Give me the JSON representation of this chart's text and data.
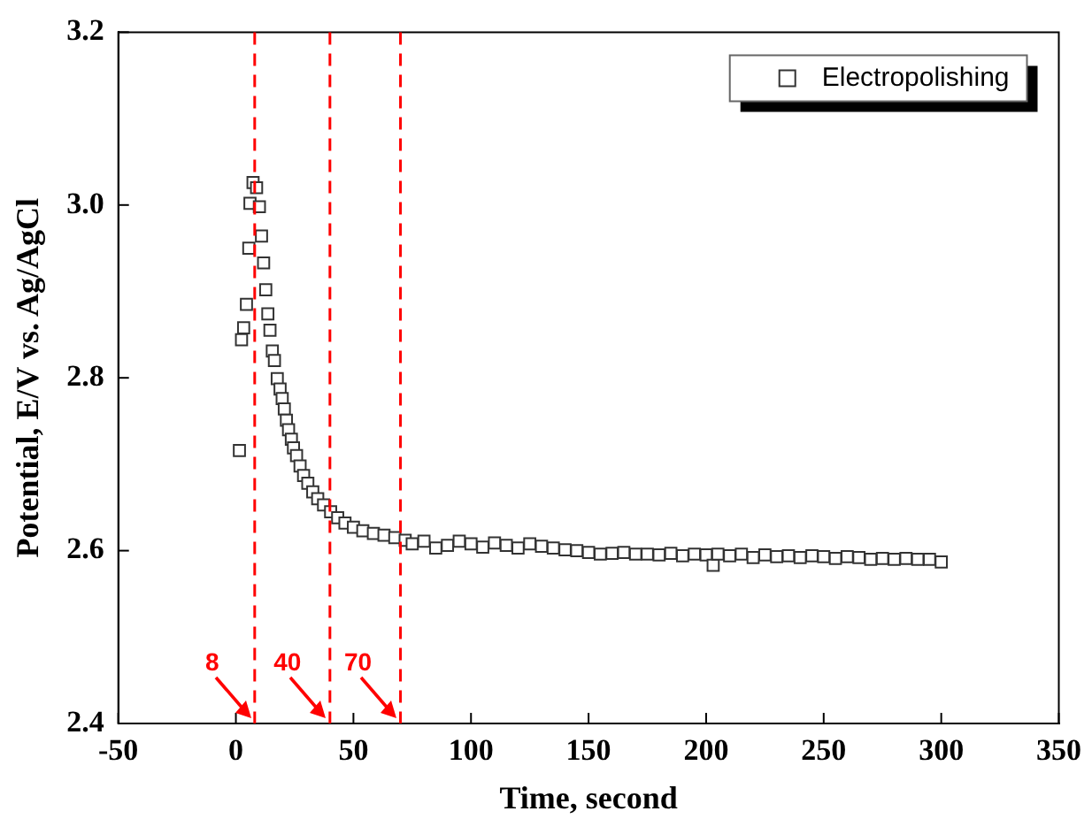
{
  "chart_data": {
    "type": "scatter",
    "xlabel": "Time, second",
    "ylabel": "Potential, E/V vs. Ag/AgCl",
    "xlim": [
      -50,
      350
    ],
    "xticks": [
      -50,
      0,
      50,
      100,
      150,
      200,
      250,
      300,
      350
    ],
    "ylim": [
      2.4,
      3.2
    ],
    "yticks": [
      2.4,
      2.6,
      2.8,
      {
        "value": 3,
        "label": "3.0"
      },
      3.2
    ],
    "grid": false,
    "legend": "top right",
    "marker": "square",
    "ref_lines": [
      {
        "axis": "x",
        "value": 8,
        "label": "8",
        "color": "#ff0000",
        "line_style": "dashed"
      },
      {
        "axis": "x",
        "value": 40,
        "label": "40",
        "color": "#ff0000",
        "line_style": "dashed"
      },
      {
        "axis": "x",
        "value": 70,
        "label": "70",
        "color": "#ff0000",
        "line_style": "dashed"
      }
    ],
    "series": [
      {
        "name": "Electropolishing",
        "color": "#333333",
        "x": [
          1.5,
          2.4,
          3.3,
          4.5,
          5.5,
          6,
          7.3,
          8.8,
          10,
          10.9,
          11.8,
          12.7,
          13.6,
          14.5,
          15.5,
          16.4,
          17.6,
          18.8,
          19.7,
          20.6,
          21.5,
          22.4,
          23.6,
          24.5,
          25.8,
          27.3,
          28.8,
          30.6,
          32.7,
          34.8,
          37.3,
          40.3,
          43.3,
          46.4,
          50,
          54,
          58.5,
          63,
          67.6,
          72,
          75,
          80,
          85,
          90,
          95,
          100,
          105,
          110,
          115,
          120,
          125,
          130,
          135,
          140,
          145,
          150,
          155,
          160,
          165,
          170,
          175,
          180,
          185,
          190,
          195,
          200,
          203,
          205,
          210,
          215,
          220,
          225,
          230,
          235,
          240,
          245,
          250,
          255,
          260,
          265,
          270,
          275,
          280,
          285,
          290,
          295,
          300
        ],
        "values": [
          2.716,
          2.844,
          2.858,
          2.885,
          2.95,
          3.002,
          3.026,
          3.02,
          2.998,
          2.964,
          2.933,
          2.902,
          2.874,
          2.855,
          2.831,
          2.82,
          2.799,
          2.787,
          2.776,
          2.764,
          2.751,
          2.74,
          2.729,
          2.719,
          2.71,
          2.698,
          2.687,
          2.678,
          2.668,
          2.66,
          2.653,
          2.645,
          2.638,
          2.632,
          2.627,
          2.623,
          2.62,
          2.618,
          2.615,
          2.612,
          2.608,
          2.611,
          2.603,
          2.606,
          2.611,
          2.608,
          2.604,
          2.609,
          2.606,
          2.603,
          2.608,
          2.605,
          2.603,
          2.601,
          2.6,
          2.598,
          2.596,
          2.597,
          2.598,
          2.596,
          2.596,
          2.595,
          2.597,
          2.594,
          2.596,
          2.595,
          2.583,
          2.596,
          2.594,
          2.596,
          2.592,
          2.595,
          2.593,
          2.594,
          2.592,
          2.594,
          2.593,
          2.591,
          2.593,
          2.592,
          2.59,
          2.591,
          2.59,
          2.591,
          2.59,
          2.59,
          2.587
        ]
      }
    ]
  }
}
